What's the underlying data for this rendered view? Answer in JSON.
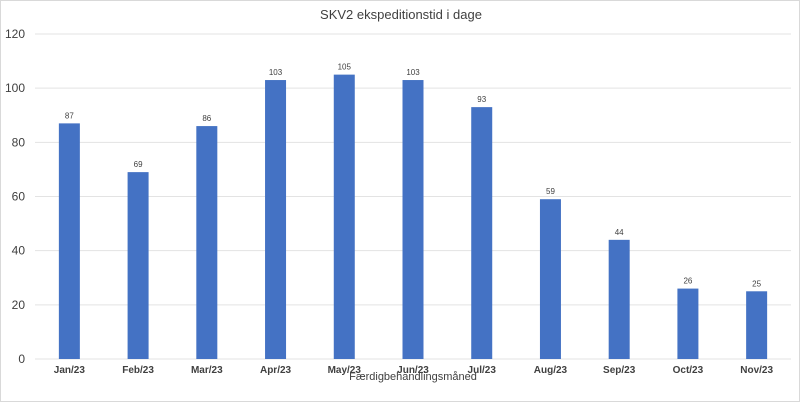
{
  "chart_data": {
    "type": "bar",
    "title": "SKV2 ekspeditionstid i dage",
    "xlabel": "Færdigbehandlingsmåned",
    "ylabel": "",
    "categories": [
      "Jan/23",
      "Feb/23",
      "Mar/23",
      "Apr/23",
      "May/23",
      "Jun/23",
      "Jul/23",
      "Aug/23",
      "Sep/23",
      "Oct/23",
      "Nov/23"
    ],
    "values": [
      87,
      69,
      86,
      103,
      105,
      103,
      93,
      59,
      44,
      26,
      25
    ],
    "data_labels": [
      "87",
      "69",
      "86",
      "103",
      "105",
      "103",
      "93",
      "59",
      "44",
      "26",
      "25"
    ],
    "ylim": [
      0,
      120
    ],
    "yticks": [
      "0",
      "20",
      "40",
      "60",
      "80",
      "100",
      "120"
    ],
    "grid": true,
    "legend": "none",
    "bar_color": "#4472c4",
    "grid_color": "#e3e3e3"
  }
}
